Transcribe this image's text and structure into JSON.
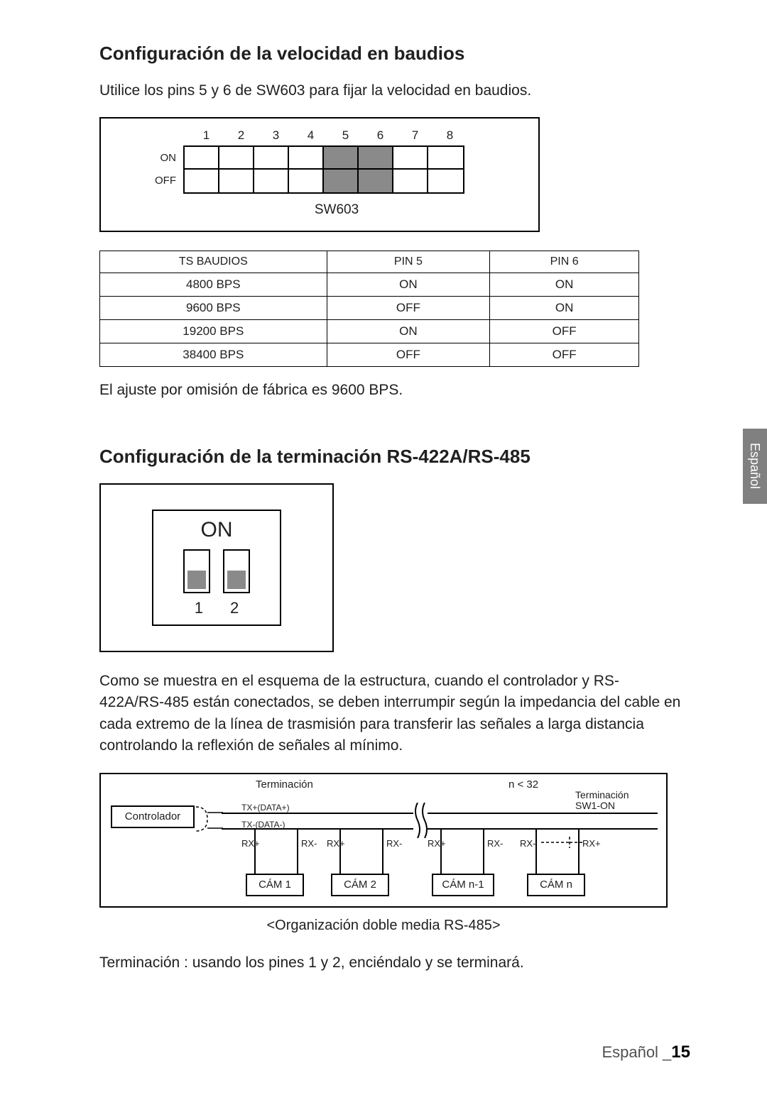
{
  "section1": {
    "title": "Configuración de la velocidad en baudios",
    "intro": "Utilice los pins 5 y 6 de SW603 para fijar la velocidad en baudios.",
    "sw603": {
      "numbers": [
        "1",
        "2",
        "3",
        "4",
        "5",
        "6",
        "7",
        "8"
      ],
      "label_on": "ON",
      "label_off": "OFF",
      "caption": "SW603",
      "filled_cols": [
        5,
        6
      ]
    },
    "baud_table": {
      "headers": [
        "TS BAUDIOS",
        "PIN 5",
        "PIN 6"
      ],
      "rows": [
        [
          "4800 BPS",
          "ON",
          "ON"
        ],
        [
          "9600 BPS",
          "OFF",
          "ON"
        ],
        [
          "19200 BPS",
          "ON",
          "OFF"
        ],
        [
          "38400 BPS",
          "OFF",
          "OFF"
        ]
      ]
    },
    "note": "El ajuste por omisión de fábrica es 9600 BPS."
  },
  "section2": {
    "title": "Configuración de la terminación RS-422A/RS-485",
    "on12": {
      "on": "ON",
      "n1": "1",
      "n2": "2"
    },
    "para": "Como se muestra en el esquema de la estructura, cuando el controlador y RS-422A/RS-485 están conectados, se deben interrumpir según la impedancia del cable en cada extremo de la línea de trasmisión para transferir las señales a larga distancia controlando la reflexión de señales al mínimo.",
    "rs485": {
      "terminacion": "Terminación",
      "n_lt_32": "n < 32",
      "terminacion_sw1": "Terminación SW1-ON",
      "controlador": "Controlador",
      "tx_plus": "TX+(DATA+)",
      "tx_minus": "TX-(DATA-)",
      "rx_plus": "RX+",
      "rx_minus": "RX-",
      "cam1": "CÁM 1",
      "cam2": "CÁM 2",
      "cam_n1": "CÁM n-1",
      "cam_n": "CÁM n",
      "caption": "<Organización doble media RS-485>"
    },
    "term_note": "Terminación : usando los pines 1 y 2, enciéndalo y se terminará."
  },
  "side_tab": "Español",
  "footer": {
    "language": "Español _",
    "page": "15"
  }
}
